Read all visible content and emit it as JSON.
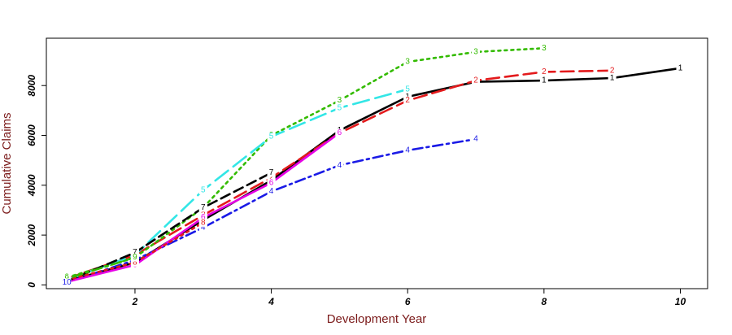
{
  "chart_data": {
    "type": "line",
    "xlabel": "Development Year",
    "ylabel": "Cumulative Claims",
    "xlim": [
      0.7,
      10.4
    ],
    "ylim": [
      -150,
      9900
    ],
    "xticks": [
      2,
      4,
      6,
      8,
      10
    ],
    "yticks": [
      0,
      2000,
      4000,
      6000,
      8000
    ],
    "x_tick_labels": [
      "2",
      "4",
      "6",
      "8",
      "10"
    ],
    "y_tick_labels": [
      "0",
      "2000",
      "4000",
      "6000",
      "8000"
    ],
    "grid": false,
    "legend": "none",
    "series": [
      {
        "marker": "1",
        "color": "#000000",
        "dash": "solid",
        "x": [
          1,
          2,
          3,
          4,
          5,
          6,
          7,
          8,
          9,
          10
        ],
        "values": [
          150,
          900,
          2600,
          4200,
          6200,
          7550,
          8150,
          8200,
          8300,
          8700
        ]
      },
      {
        "marker": "2",
        "color": "#e31a1c",
        "dash": "long",
        "x": [
          1,
          2,
          3,
          4,
          5,
          6,
          7,
          8,
          9
        ],
        "values": [
          250,
          1200,
          2800,
          4300,
          6100,
          7400,
          8200,
          8550,
          8600
        ]
      },
      {
        "marker": "3",
        "color": "#33bb00",
        "dash": "dot",
        "x": [
          1,
          2,
          3,
          4,
          5,
          6,
          7,
          8
        ],
        "values": [
          300,
          1100,
          3100,
          6000,
          7400,
          8950,
          9350,
          9500
        ]
      },
      {
        "marker": "4",
        "color": "#1a1ae6",
        "dash": "dotdash",
        "x": [
          1,
          2,
          3,
          4,
          5,
          6,
          7
        ],
        "values": [
          100,
          1000,
          2300,
          3750,
          4800,
          5400,
          5850
        ]
      },
      {
        "marker": "5",
        "color": "#33e6e6",
        "dash": "longdash",
        "x": [
          1,
          2,
          3,
          4,
          5,
          6
        ],
        "values": [
          200,
          1200,
          3800,
          5950,
          7100,
          7850
        ]
      },
      {
        "marker": "6",
        "color": "#e600e6",
        "dash": "solid",
        "x": [
          1,
          2,
          3,
          4,
          5
        ],
        "values": [
          120,
          800,
          2700,
          4100,
          6100
        ]
      },
      {
        "marker": "7",
        "color": "#000000",
        "dash": "dash",
        "x": [
          1,
          2,
          3,
          4
        ],
        "values": [
          150,
          1300,
          3100,
          4500
        ]
      },
      {
        "marker": "8",
        "color": "#e31a1c",
        "dash": "dot",
        "x": [
          1,
          2,
          3
        ],
        "values": [
          200,
          900,
          2500
        ]
      },
      {
        "marker": "9",
        "color": "#33bb00",
        "dash": "dotdash",
        "x": [
          1,
          2
        ],
        "values": [
          250,
          1100
        ]
      },
      {
        "marker": "10",
        "color": "#1a1ae6",
        "dash": "solid",
        "x": [
          1
        ],
        "values": [
          100
        ]
      }
    ]
  }
}
